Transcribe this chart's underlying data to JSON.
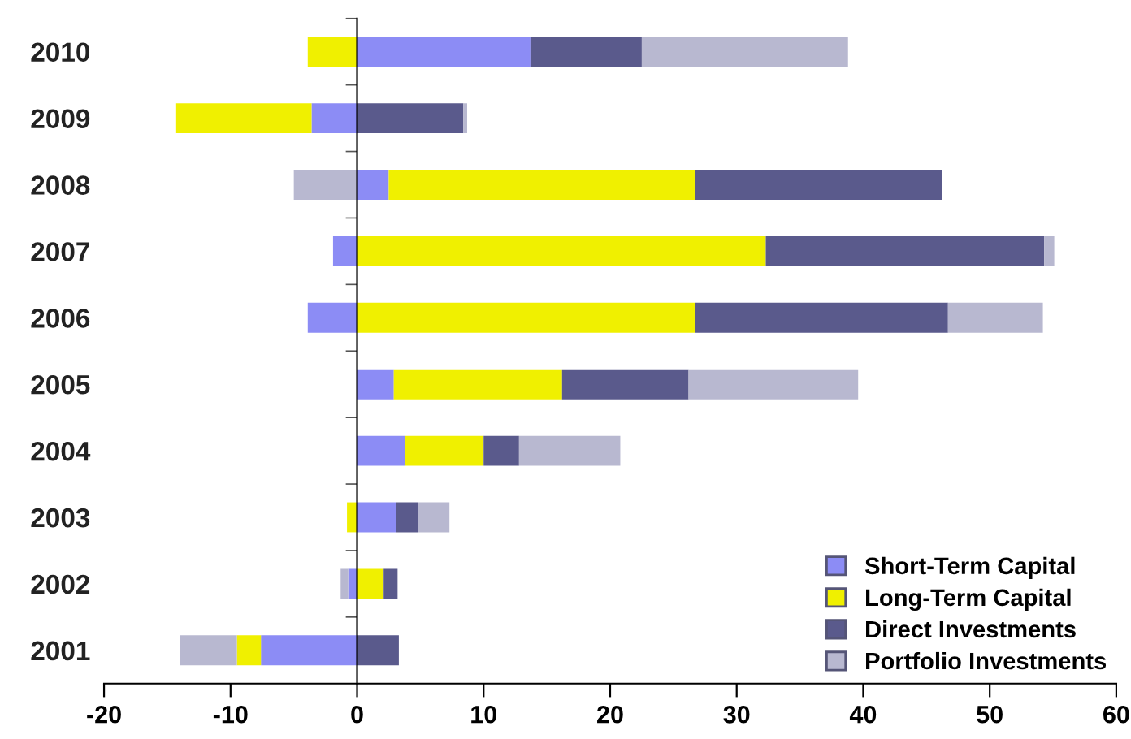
{
  "chart_data": {
    "type": "bar",
    "orientation": "horizontal",
    "stacked": true,
    "categories": [
      "2010",
      "2009",
      "2008",
      "2007",
      "2006",
      "2005",
      "2004",
      "2003",
      "2002",
      "2001"
    ],
    "series": [
      {
        "name": "Short-Term Capital",
        "color": "#8c8cf5",
        "values": [
          13.7,
          -3.6,
          2.5,
          -1.9,
          -3.9,
          2.9,
          3.8,
          3.1,
          -0.7,
          -7.6
        ]
      },
      {
        "name": "Long-Term Capital",
        "color": "#f0f000",
        "values": [
          -3.9,
          -10.7,
          24.2,
          32.3,
          26.7,
          13.3,
          6.2,
          -0.8,
          2.1,
          -1.9
        ]
      },
      {
        "name": "Direct Investments",
        "color": "#5a5a8c",
        "values": [
          8.8,
          8.4,
          19.5,
          22.0,
          20.0,
          10.0,
          2.8,
          1.7,
          1.1,
          3.3
        ]
      },
      {
        "name": "Portfolio Investments",
        "color": "#b8b8d0",
        "values": [
          16.3,
          0.3,
          -5.0,
          0.8,
          7.5,
          13.4,
          8.0,
          2.5,
          -0.6,
          -4.5
        ]
      }
    ],
    "xlim": [
      -20,
      60
    ],
    "xticks": [
      -20,
      -10,
      0,
      10,
      20,
      30,
      40,
      50,
      60
    ],
    "legend": "bottom right"
  }
}
